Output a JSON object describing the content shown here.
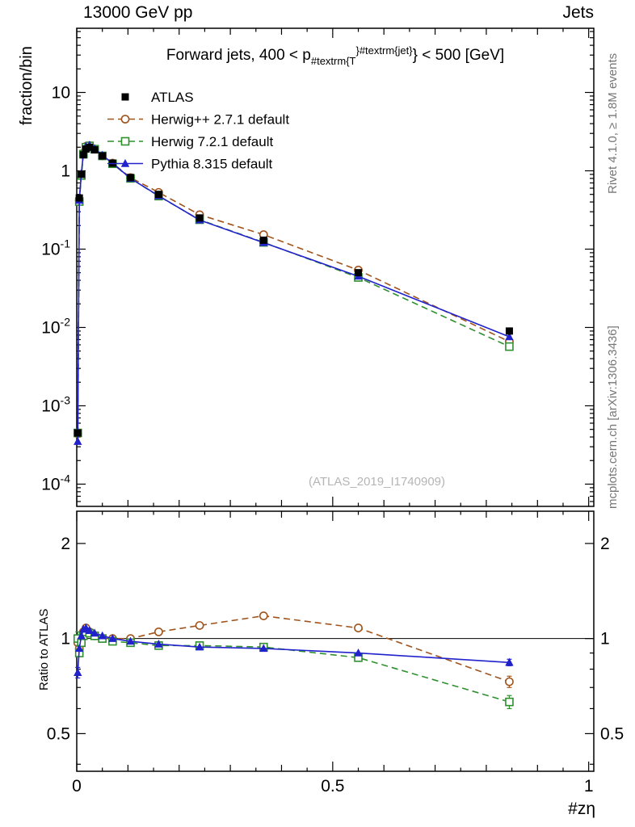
{
  "header": {
    "left": "13000 GeV pp",
    "right": "Jets"
  },
  "side_texts": {
    "top_right": "Rivet 4.1.0, ≥ 1.8M events",
    "bottom_right": "mcplots.cern.ch [arXiv:1306.3436]"
  },
  "watermark": "(ATLAS_2019_I1740909)",
  "panel_titles": {
    "main_y": "fraction/bin",
    "ratio_y": "Ratio to ATLAS",
    "x": "#zη"
  },
  "plot_title": {
    "parts": [
      {
        "text": "Forward jets, 400 < p",
        "pos": "base"
      },
      {
        "text": "#textrm{T",
        "pos": "sub"
      },
      {
        "text": "}",
        "pos": "sup"
      },
      {
        "text": "#textrm{jet}",
        "pos": "sup"
      },
      {
        "text": "} < 500 [GeV]",
        "pos": "base"
      }
    ]
  },
  "chart_data": {
    "type": "line",
    "title": "Forward jets, 400 < pT^jet < 500 [GeV]",
    "xlabel": "#zη",
    "ylabel": "fraction/bin",
    "ratio_label": "Ratio to ATLAS",
    "legend_position": "top-left",
    "x": [
      0.002,
      0.005,
      0.009,
      0.013,
      0.018,
      0.025,
      0.035,
      0.05,
      0.07,
      0.105,
      0.16,
      0.24,
      0.365,
      0.55,
      0.845
    ],
    "series": [
      {
        "name": "ATLAS",
        "color": "#000000",
        "marker": "square-filled",
        "line": "none",
        "values": [
          0.00045,
          0.45,
          0.9,
          1.6,
          1.9,
          2.0,
          1.85,
          1.55,
          1.25,
          0.82,
          0.5,
          0.25,
          0.13,
          0.05,
          0.009
        ],
        "err_frac": [
          0.1,
          0.03,
          0.02,
          0.012,
          0.01,
          0.01,
          0.01,
          0.01,
          0.01,
          0.01,
          0.01,
          0.012,
          0.015,
          0.02,
          0.04
        ],
        "ratio": null
      },
      {
        "name": "Herwig++ 2.7.1 default",
        "color": "#a0541d",
        "marker": "circle-open",
        "line": "dashed",
        "values": [
          0.00044,
          0.42,
          0.9,
          1.68,
          2.05,
          2.1,
          1.89,
          1.55,
          1.25,
          0.82,
          0.53,
          0.275,
          0.153,
          0.054,
          0.0066
        ],
        "ratio": [
          0.97,
          0.93,
          1.0,
          1.05,
          1.08,
          1.05,
          1.02,
          1.0,
          1.0,
          1.0,
          1.05,
          1.1,
          1.18,
          1.08,
          0.73
        ],
        "ratio_err": [
          0.05,
          0.02,
          0.012,
          0.01,
          0.008,
          0.007,
          0.007,
          0.007,
          0.007,
          0.008,
          0.01,
          0.012,
          0.015,
          0.02,
          0.03
        ]
      },
      {
        "name": "Herwig 7.2.1 default",
        "color": "#2f8f2f",
        "marker": "square-open",
        "line": "dashed",
        "values": [
          0.00045,
          0.405,
          0.87,
          1.63,
          2.0,
          2.08,
          1.89,
          1.55,
          1.23,
          0.8,
          0.475,
          0.2375,
          0.122,
          0.0435,
          0.0057
        ],
        "ratio": [
          1.0,
          0.9,
          0.97,
          1.02,
          1.05,
          1.04,
          1.02,
          1.0,
          0.98,
          0.97,
          0.95,
          0.95,
          0.94,
          0.87,
          0.63
        ],
        "ratio_err": [
          0.05,
          0.02,
          0.012,
          0.01,
          0.008,
          0.007,
          0.007,
          0.007,
          0.007,
          0.008,
          0.01,
          0.012,
          0.015,
          0.02,
          0.03
        ]
      },
      {
        "name": "Pythia 8.315 default",
        "color": "#2222cc",
        "marker": "triangle-filled",
        "line": "solid",
        "values": [
          0.00035,
          0.42,
          0.92,
          1.71,
          2.05,
          2.12,
          1.92,
          1.58,
          1.25,
          0.8,
          0.48,
          0.235,
          0.121,
          0.045,
          0.0076
        ],
        "ratio": [
          0.78,
          0.93,
          1.02,
          1.07,
          1.08,
          1.06,
          1.04,
          1.02,
          1.0,
          0.98,
          0.96,
          0.94,
          0.93,
          0.9,
          0.84
        ],
        "ratio_err": [
          0.03,
          0.012,
          0.008,
          0.006,
          0.005,
          0.005,
          0.005,
          0.005,
          0.005,
          0.005,
          0.006,
          0.008,
          0.01,
          0.012,
          0.02
        ]
      }
    ],
    "x_axis": {
      "range": [
        0,
        1.01
      ],
      "major_ticks": [
        0,
        0.5,
        1
      ],
      "major_tick_labels": [
        "0",
        "0.5",
        "1"
      ],
      "minor_step": 0.05
    },
    "y_axis_main": {
      "scale": "log",
      "range": [
        5.2e-05,
        66
      ],
      "decades": [
        1,
        0,
        -1,
        -2,
        -3,
        -4
      ]
    },
    "y_axis_ratio": {
      "scale": "log",
      "range": [
        0.38,
        2.53
      ],
      "ticks": [
        0.5,
        1,
        2
      ],
      "tick_labels": [
        "0.5",
        "1",
        "2"
      ],
      "minor_ticks": [
        0.4,
        0.6,
        0.7,
        0.8,
        0.9
      ],
      "reference_line": 1
    }
  }
}
